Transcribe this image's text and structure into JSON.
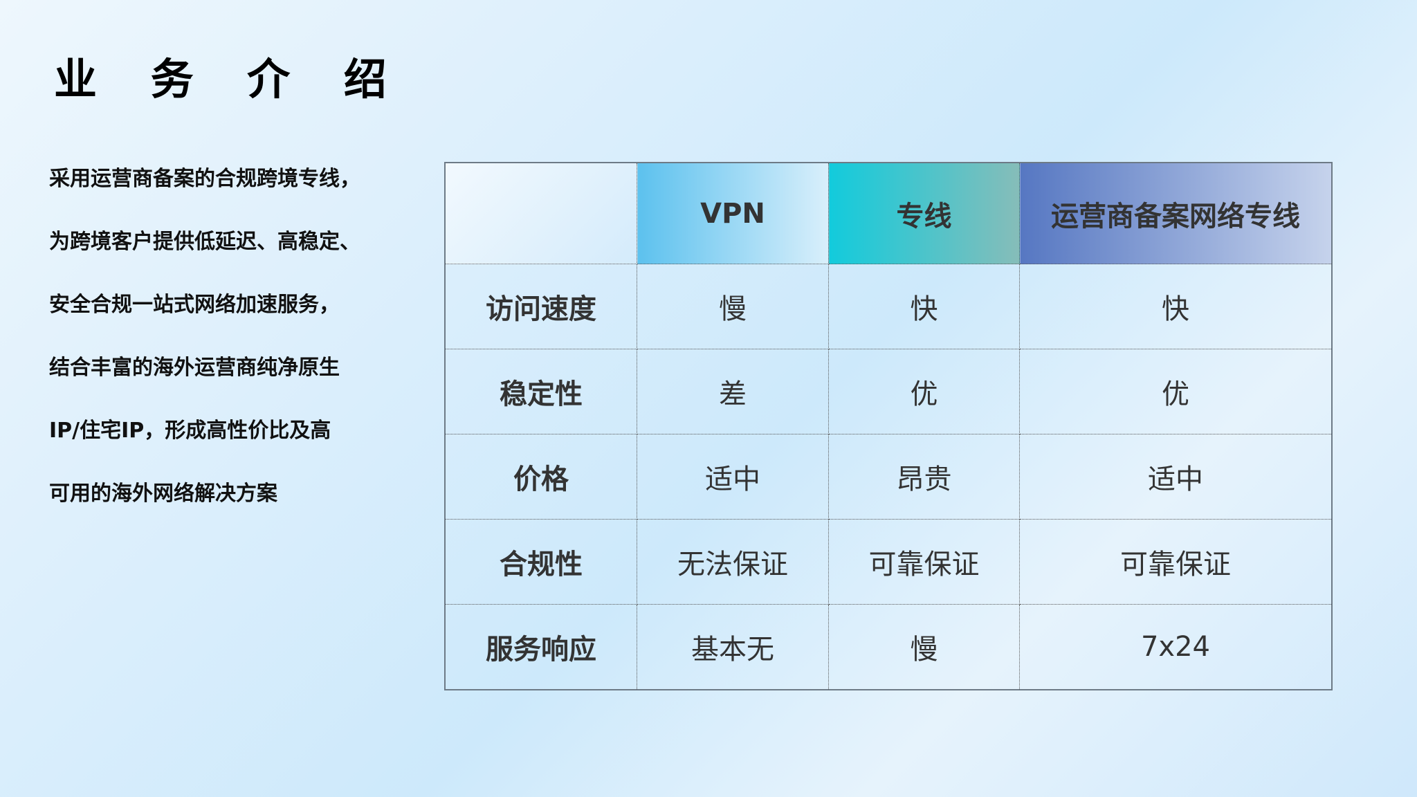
{
  "title": "业 务 介 绍",
  "intro_lines": [
    "采用运营商备案的合规跨境专线，",
    "为跨境客户提供低延迟、高稳定、",
    "安全合规一站式网络加速服务，",
    "结合丰富的海外运营商纯净原生",
    "IP/住宅IP，形成高性价比及高",
    "可用的海外网络解决方案"
  ],
  "table": {
    "headers": [
      "",
      "VPN",
      "专线",
      "运营商备案网络专线"
    ],
    "rows": [
      [
        "访问速度",
        "慢",
        "快",
        "快"
      ],
      [
        "稳定性",
        "差",
        "优",
        "优"
      ],
      [
        "价格",
        "适中",
        "昂贵",
        "适中"
      ],
      [
        "合规性",
        "无法保证",
        "可靠保证",
        "可靠保证"
      ],
      [
        "服务响应",
        "基本无",
        "慢",
        "7x24"
      ]
    ]
  }
}
